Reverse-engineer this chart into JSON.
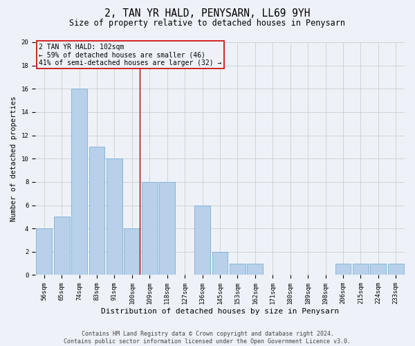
{
  "title": "2, TAN YR HALD, PENYSARN, LL69 9YH",
  "subtitle": "Size of property relative to detached houses in Penysarn",
  "xlabel": "Distribution of detached houses by size in Penysarn",
  "ylabel": "Number of detached properties",
  "categories": [
    "56sqm",
    "65sqm",
    "74sqm",
    "83sqm",
    "91sqm",
    "100sqm",
    "109sqm",
    "118sqm",
    "127sqm",
    "136sqm",
    "145sqm",
    "153sqm",
    "162sqm",
    "171sqm",
    "180sqm",
    "189sqm",
    "198sqm",
    "206sqm",
    "215sqm",
    "224sqm",
    "233sqm"
  ],
  "values": [
    4,
    5,
    16,
    11,
    10,
    4,
    8,
    8,
    0,
    6,
    2,
    1,
    1,
    0,
    0,
    0,
    0,
    1,
    1,
    1,
    1
  ],
  "bar_color": "#b8d0ea",
  "bar_edgecolor": "#7aafd4",
  "bar_width": 0.9,
  "ylim": [
    0,
    20
  ],
  "yticks": [
    0,
    2,
    4,
    6,
    8,
    10,
    12,
    14,
    16,
    18,
    20
  ],
  "property_line_x": 5.45,
  "property_line_color": "#aa0000",
  "annotation_text_line1": "2 TAN YR HALD: 102sqm",
  "annotation_text_line2": "← 59% of detached houses are smaller (46)",
  "annotation_text_line3": "41% of semi-detached houses are larger (32) →",
  "annotation_fontsize": 7,
  "annotation_box_color": "#cc0000",
  "grid_color": "#cccccc",
  "background_color": "#eef2f8",
  "title_fontsize": 10.5,
  "subtitle_fontsize": 8.5,
  "xlabel_fontsize": 8,
  "ylabel_fontsize": 7.5,
  "tick_fontsize": 6.5,
  "footer_text": "Contains HM Land Registry data © Crown copyright and database right 2024.\nContains public sector information licensed under the Open Government Licence v3.0.",
  "footer_fontsize": 6
}
